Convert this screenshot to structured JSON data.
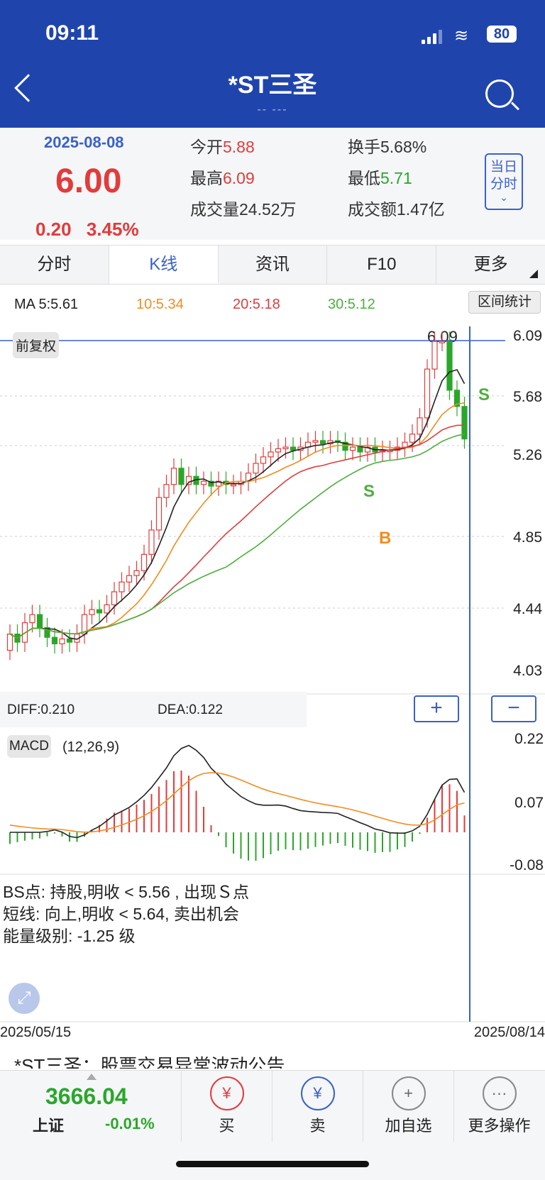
{
  "status": {
    "time": "09:11",
    "battery": "80"
  },
  "header": {
    "title": "*ST三圣",
    "subtitle": "-- ---"
  },
  "quote": {
    "date": "2025-08-08",
    "price": "6.00",
    "change": "0.20",
    "change_pct": "3.45%",
    "open_label": "今开",
    "open": "5.88",
    "high_label": "最高",
    "high": "6.09",
    "volume_label": "成交量",
    "volume": "24.52万",
    "turnover_label": "换手",
    "turnover": "5.68%",
    "low_label": "最低",
    "low": "5.71",
    "amount_label": "成交额",
    "amount": "1.47亿",
    "mode_button_line1": "当日",
    "mode_button_line2": "分时"
  },
  "tabs": [
    "分时",
    "K线",
    "资讯",
    "F10",
    "更多"
  ],
  "ma": {
    "ma5": "MA 5:5.61",
    "ma10": "10:5.34",
    "ma20": "20:5.18",
    "ma30": "30:5.12",
    "range_button": "区间统计"
  },
  "kline": {
    "adjust_tag": "前复权",
    "high_marker": "6.09",
    "y_ticks": [
      "6.09",
      "5.68",
      "5.26",
      "4.85",
      "4.44",
      "4.03"
    ],
    "signals": {
      "s1": "S",
      "s2": "S",
      "b1": "B"
    }
  },
  "macd": {
    "diff": "DIFF:0.210",
    "dea": "DEA:0.122",
    "plus": "+",
    "minus": "−",
    "tag": "MACD",
    "params": "(12,26,9)",
    "y_ticks": [
      "0.22",
      "0.07",
      "-0.08"
    ]
  },
  "bs_info": {
    "line1": "BS点: 持股,明收 < 5.56 , 出现Ｓ点",
    "line2": " 短线: 向上,明收 < 5.64, 卖出机会",
    "line3": "能量级别: -1.25 级"
  },
  "dates": {
    "start": "2025/05/15",
    "end": "2025/08/14"
  },
  "news_headline": "*ST三圣：股票交易异常波动公告",
  "index": {
    "value": "3666.04",
    "name": "上证",
    "change": "-0.01%"
  },
  "actions": [
    {
      "label": "买",
      "icon": "buy-icon"
    },
    {
      "label": "卖",
      "icon": "sell-icon"
    },
    {
      "label": "加自选",
      "icon": "add-favorite-icon"
    },
    {
      "label": "更多操作",
      "icon": "more-icon"
    }
  ],
  "colors": {
    "header_bg": "#1f45ad",
    "up": "#e23b3b",
    "down": "#2aa72a",
    "accent": "#3a61c9",
    "ma10": "#f28c1d",
    "ma20": "#e23b3b",
    "ma30": "#4caf3c"
  }
}
